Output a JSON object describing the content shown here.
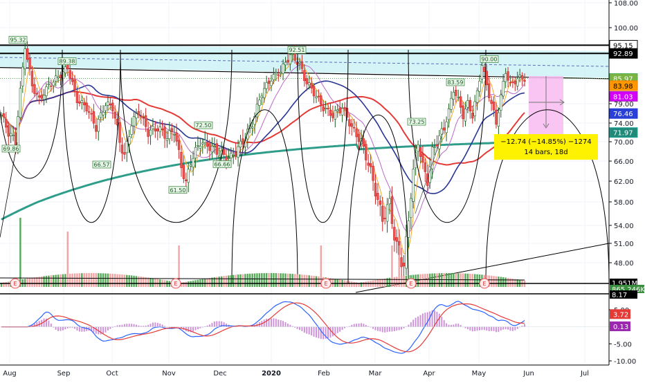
{
  "chart_data": {
    "type": "candlestick",
    "price_axis": {
      "ticks": [
        {
          "value": 108,
          "label": "108.00"
        },
        {
          "value": 100,
          "label": "100.00"
        },
        {
          "value": 79,
          "label": "79.00"
        },
        {
          "value": 74,
          "label": "74.00"
        },
        {
          "value": 70,
          "label": "70.00"
        },
        {
          "value": 66,
          "label": "66.00"
        },
        {
          "value": 62,
          "label": "62.00"
        },
        {
          "value": 58,
          "label": "58.00"
        },
        {
          "value": 54,
          "label": "54.00"
        },
        {
          "value": 51,
          "label": "51.00"
        },
        {
          "value": 48,
          "label": "48.00"
        }
      ]
    },
    "price_badges": [
      {
        "value": 95.15,
        "label": "95.15",
        "color": "#000000",
        "text_color": "#000000",
        "fill": "#ffffff"
      },
      {
        "value": 92.89,
        "label": "92.89",
        "color": "#000000",
        "text_color": "#ffffff",
        "fill": "#000000"
      },
      {
        "value": 85.97,
        "label": "85.97",
        "color": "#4caf50",
        "text_color": "#ffffff",
        "fill": "#7cb342"
      },
      {
        "value": 83.98,
        "label": "83.98",
        "color": "#f57c00",
        "text_color": "#000000",
        "fill": "#ff9800"
      },
      {
        "value": 81.03,
        "label": "81.03",
        "color": "#9c27b0",
        "text_color": "#ffffff",
        "fill": "#d500f9"
      },
      {
        "value": 76.46,
        "label": "76.46",
        "color": "#1e3ad6",
        "text_color": "#ffffff",
        "fill": "#2a3fd6"
      },
      {
        "value": 71.97,
        "label": "71.97",
        "color": "#26a69a",
        "text_color": "#ffffff",
        "fill": "#1f8a7a"
      }
    ],
    "volume_badges": [
      {
        "label": "1.951M",
        "fill": "#000000",
        "text_color": "#ffffff"
      },
      {
        "label": "865.246K",
        "fill": "#388e3c",
        "text_color": "#ffffff"
      },
      {
        "label": "8.17",
        "fill": "#000000",
        "text_color": "#ffffff"
      }
    ],
    "macd_axis": {
      "ticks": [
        {
          "value": 5,
          "label": "5.00"
        },
        {
          "value": -5,
          "label": "-5.00"
        },
        {
          "value": -10,
          "label": "-10.00"
        }
      ]
    },
    "macd_badges": [
      {
        "value": 3.72,
        "label": "3.72",
        "fill": "#e53935",
        "text_color": "#ffffff"
      },
      {
        "value": 0.13,
        "label": "0.13",
        "fill": "#9c27b0",
        "text_color": "#ffffff"
      }
    ],
    "x_axis": {
      "labels": [
        "Aug",
        "Sep",
        "Oct",
        "Nov",
        "Dec",
        "2020",
        "Feb",
        "Mar",
        "Apr",
        "May",
        "Jun",
        "Jul"
      ]
    },
    "pivot_labels": [
      {
        "label": "95.32",
        "value": 95.32,
        "pos": "high"
      },
      {
        "label": "89.38",
        "value": 89.38,
        "pos": "high"
      },
      {
        "label": "69.86",
        "value": 69.86,
        "pos": "low"
      },
      {
        "label": "66.57",
        "value": 66.57,
        "pos": "low"
      },
      {
        "label": "72.50",
        "value": 72.5,
        "pos": "high"
      },
      {
        "label": "61.50",
        "value": 61.5,
        "pos": "low"
      },
      {
        "label": "66.66",
        "value": 66.66,
        "pos": "low"
      },
      {
        "label": "92.51",
        "value": 92.51,
        "pos": "high"
      },
      {
        "label": "73.25",
        "value": 73.25,
        "pos": "high"
      },
      {
        "label": "83.59",
        "value": 83.59,
        "pos": "high"
      },
      {
        "label": "90.00",
        "value": 90.0,
        "pos": "high"
      }
    ],
    "earnings_markers": [
      "E",
      "E",
      "E",
      "E",
      "E"
    ],
    "measure_box": {
      "line1": "−12.74 (−14.85%) −1274",
      "line2": "14 bars, 18d"
    },
    "colors": {
      "up": "#26a69a",
      "up_candle": "#ffffff",
      "down": "#ef5350",
      "ma_red": "#e53935",
      "ma_blue": "#283593",
      "ma_teal": "#2e9e8a",
      "ma_purple": "#ba68c8",
      "ma_orange": "#f9a825",
      "channel_fill": "#b2ebf2",
      "measure_fill": "#fff200",
      "projection_fill": "#f8bbf0",
      "macd_line": "#2962ff",
      "signal_line": "#e53935",
      "hist": "#ce93d8"
    }
  }
}
